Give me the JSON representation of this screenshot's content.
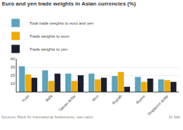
{
  "chart_data": {
    "type": "bar",
    "title": "Euro and yen trade weights in Asian currencies (%)",
    "categories": [
      "Yuan",
      "Baht",
      "Taiwan dollar",
      "Won",
      "Rupiah",
      "Rupee",
      "Singapore dollar"
    ],
    "series": [
      {
        "name": "Total trade weights to euro and yen",
        "color": "#5ba3be",
        "values": [
          31,
          26,
          22,
          22,
          19,
          18,
          15
        ]
      },
      {
        "name": "Trade weights to euro",
        "color": "#f0aa00",
        "values": [
          21,
          13,
          13,
          15,
          24,
          12,
          14
        ]
      },
      {
        "name": "Trade weights to yen",
        "color": "#1a1f2e",
        "values": [
          17,
          22,
          20,
          17,
          6,
          16,
          12
        ]
      }
    ],
    "ylim": [
      0,
      40
    ],
    "yticks": [
      10,
      20,
      30,
      40
    ],
    "grid": true,
    "legend": "top",
    "annotations": [
      "Sources: Bank for International Settlements, own calcs.",
      "31 Mar"
    ]
  }
}
